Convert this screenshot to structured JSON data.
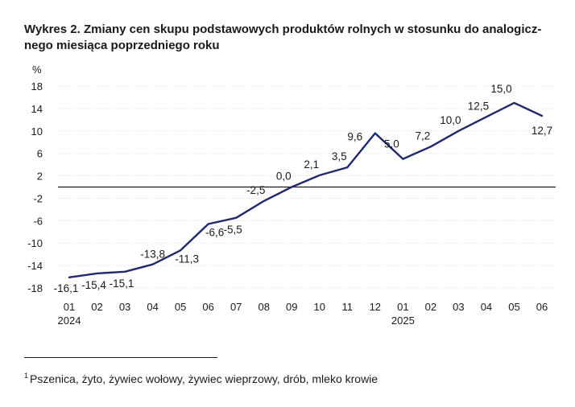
{
  "chart_data": {
    "type": "line",
    "title_lines": [
      "Wykres 2. Zmiany cen skupu podstawowych produktów rolnych w stosunku do analogicz-",
      "nego miesiąca poprzedniego roku"
    ],
    "ylabel": "%",
    "ylim": [
      -18,
      18
    ],
    "y_ticks": [
      "18",
      "14",
      "10",
      "6",
      "2",
      "-2",
      "-6",
      "-10",
      "-14",
      "-18"
    ],
    "y_tick_values": [
      18,
      14,
      10,
      6,
      2,
      -2,
      -6,
      -10,
      -14,
      -18
    ],
    "categories": [
      "01",
      "02",
      "03",
      "04",
      "05",
      "06",
      "07",
      "08",
      "09",
      "10",
      "11",
      "12",
      "01",
      "02",
      "03",
      "04",
      "05",
      "06"
    ],
    "year_labels": [
      {
        "label": "2024",
        "index": 0
      },
      {
        "label": "2025",
        "index": 12
      }
    ],
    "values": [
      -16.1,
      -15.4,
      -15.1,
      -13.8,
      -11.3,
      -6.6,
      -5.5,
      -2.5,
      0.0,
      2.1,
      3.5,
      9.6,
      5.0,
      7.2,
      10.0,
      12.5,
      15.0,
      12.7
    ],
    "value_labels": [
      "-16,1",
      "-15,4",
      "-15,1",
      "-13,8",
      "-11,3",
      "-6,6",
      "-5,5",
      "-2,5",
      "0,0",
      "2,1",
      "3,5",
      "9,6",
      "5,0",
      "7,2",
      "10,0",
      "12,5",
      "15,0",
      "12,7"
    ],
    "line_color": "#1f2a6e",
    "zero_line_color": "#1a1a1a",
    "grid": true,
    "grid_color": "#dcdcdc"
  },
  "footnote": {
    "marker": "1",
    "text": "Pszenica, żyto, żywiec wołowy, żywiec wieprzowy, drób, mleko krowie"
  }
}
